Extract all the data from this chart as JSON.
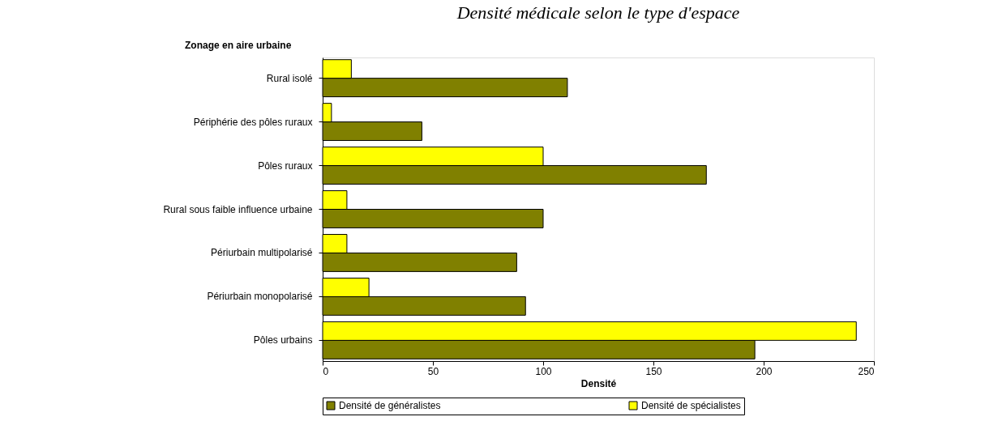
{
  "chart_data": {
    "type": "bar",
    "orientation": "horizontal",
    "title": "Densité médicale selon le type d'espace",
    "ylabel": "Zonage en aire urbaine",
    "xlabel": "Densité",
    "categories": [
      "Rural isolé",
      "Périphérie des pôles ruraux",
      "Pôles ruraux",
      "Rural sous faible influence urbaine",
      "Périurbain multipolarisé",
      "Périurbain monopolarisé",
      "Pôles urbains"
    ],
    "series": [
      {
        "name": "Densité de généralistes",
        "color": "#808000",
        "values": [
          111,
          45,
          174,
          100,
          88,
          92,
          196
        ]
      },
      {
        "name": "Densité de spécialistes",
        "color": "#ffff00",
        "values": [
          13,
          4,
          100,
          11,
          11,
          21,
          242
        ]
      }
    ],
    "xlim": [
      0,
      250
    ],
    "xticks": [
      0,
      50,
      100,
      150,
      200,
      250
    ],
    "grid": false,
    "legend": "bottom"
  }
}
